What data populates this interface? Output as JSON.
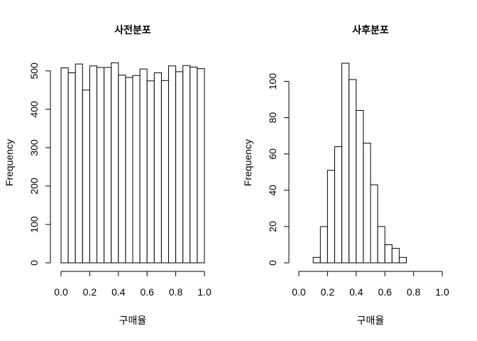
{
  "chart_data": [
    {
      "type": "bar",
      "title": "사전분포",
      "xlabel": "구매율",
      "ylabel": "Frequency",
      "bin_edges": [
        0.0,
        0.05,
        0.1,
        0.15,
        0.2,
        0.25,
        0.3,
        0.35,
        0.4,
        0.45,
        0.5,
        0.55,
        0.6,
        0.65,
        0.7,
        0.75,
        0.8,
        0.85,
        0.9,
        0.95,
        1.0
      ],
      "values": [
        508,
        495,
        518,
        450,
        513,
        509,
        509,
        521,
        489,
        483,
        488,
        505,
        474,
        495,
        475,
        513,
        498,
        514,
        510,
        506
      ],
      "xlim": [
        0.0,
        1.0
      ],
      "ylim": [
        0,
        520
      ],
      "xticks": [
        0.0,
        0.2,
        0.4,
        0.6,
        0.8,
        1.0
      ],
      "xtick_labels": [
        "0.0",
        "0.2",
        "0.4",
        "0.6",
        "0.8",
        "1.0"
      ],
      "yticks": [
        0,
        100,
        200,
        300,
        400,
        500
      ],
      "ytick_labels": [
        "0",
        "100",
        "200",
        "300",
        "400",
        "500"
      ]
    },
    {
      "type": "bar",
      "title": "사후분포",
      "xlabel": "구매율",
      "ylabel": "Frequency",
      "bin_edges": [
        0.1,
        0.15,
        0.2,
        0.25,
        0.3,
        0.35,
        0.4,
        0.45,
        0.5,
        0.55,
        0.6,
        0.65,
        0.7,
        0.75
      ],
      "values": [
        3,
        20,
        51,
        64,
        110,
        101,
        84,
        66,
        43,
        20,
        10,
        8,
        3
      ],
      "xlim": [
        0.0,
        1.0
      ],
      "ylim": [
        0,
        110
      ],
      "xticks": [
        0.0,
        0.2,
        0.4,
        0.6,
        0.8,
        1.0
      ],
      "xtick_labels": [
        "0.0",
        "0.2",
        "0.4",
        "0.6",
        "0.8",
        "1.0"
      ],
      "yticks": [
        0,
        20,
        40,
        60,
        80,
        100
      ],
      "ytick_labels": [
        "0",
        "20",
        "40",
        "60",
        "80",
        "100"
      ]
    }
  ]
}
